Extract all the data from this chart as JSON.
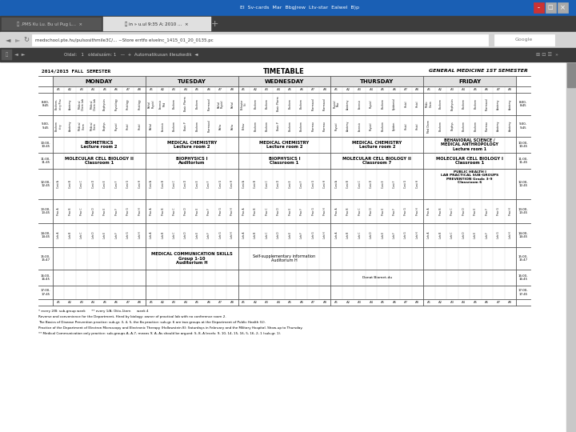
{
  "title_left": "2014/2015 FALL SEMESTER",
  "title_center": "TIMETABLE",
  "title_right": "GENERAL MEDICINE 1ST SEMESTER",
  "days": [
    "MONDAY",
    "TUESDAY",
    "WEDNESDAY",
    "THURSDAY",
    "FRIDAY"
  ],
  "sub_labels_top": [
    "A1",
    "A2",
    "A3",
    "A4",
    "A5",
    "A6",
    "A7",
    "A8"
  ],
  "sub_labels_mon": [
    "A1",
    "A2",
    "A3",
    "A4",
    "A5",
    "A6",
    "A7",
    "A8"
  ],
  "times_left": [
    "8:00-\n8:45",
    "9:00-\n9:45",
    "10:00-\n10:45",
    "11:00-\n11:45",
    "12:00-\n12:45",
    "13:00-\n13:45",
    "14:00-\n14:45",
    "15:00-\n15:47",
    "16:00-\n16:45"
  ],
  "browser_titlebar_color": "#1a5fb4",
  "browser_tabbar_color": "#3d3d3d",
  "browser_active_tab_color": "#e8e8e8",
  "browser_inactive_tab_color": "#555555",
  "nav_bar_color": "#d4d4d4",
  "pdf_toolbar_color": "#3a3a3a",
  "page_bg": "#ffffff",
  "scrollbar_color": "#bbbbbb",
  "table_border_color": "#555555",
  "header_bg": "#e8e8e8",
  "cell_line_color": "#aaaaaa",
  "text_dark": "#000000"
}
